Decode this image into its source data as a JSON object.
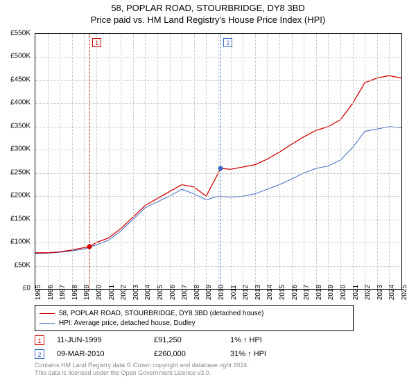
{
  "title": {
    "line1": "58, POPLAR ROAD, STOURBRIDGE, DY8 3BD",
    "line2": "Price paid vs. HM Land Registry's House Price Index (HPI)"
  },
  "chart": {
    "type": "line",
    "plot_background": "#ffffff",
    "grid_color": "#bfbfbf",
    "border_color": "#000000",
    "y_axis": {
      "min": 0,
      "max": 550000,
      "step": 50000,
      "ticks": [
        0,
        50000,
        100000,
        150000,
        200000,
        250000,
        300000,
        350000,
        400000,
        450000,
        500000,
        550000
      ],
      "tick_labels": [
        "£0",
        "£50K",
        "£100K",
        "£150K",
        "£200K",
        "£250K",
        "£300K",
        "£350K",
        "£400K",
        "£450K",
        "£500K",
        "£550K"
      ],
      "label_fontsize": 10,
      "label_color": "#000000"
    },
    "x_axis": {
      "min": 1995,
      "max": 2025,
      "ticks": [
        1995,
        1996,
        1997,
        1998,
        1999,
        2000,
        2001,
        2002,
        2003,
        2004,
        2005,
        2006,
        2007,
        2008,
        2009,
        2010,
        2011,
        2012,
        2013,
        2014,
        2015,
        2016,
        2017,
        2018,
        2019,
        2020,
        2021,
        2022,
        2023,
        2024,
        2025
      ],
      "label_fontsize": 10,
      "label_color": "#000000",
      "label_rotation": -90
    },
    "series": [
      {
        "name": "58, POPLAR ROAD, STOURBRIDGE, DY8 3BD (detached house)",
        "color": "#d40000",
        "line_width": 1.3,
        "data": [
          [
            1995,
            78000
          ],
          [
            1996,
            78000
          ],
          [
            1997,
            80000
          ],
          [
            1998,
            84000
          ],
          [
            1999.44,
            91250
          ],
          [
            2000,
            100000
          ],
          [
            2001,
            110000
          ],
          [
            2002,
            130000
          ],
          [
            2003,
            155000
          ],
          [
            2004,
            180000
          ],
          [
            2005,
            195000
          ],
          [
            2006,
            210000
          ],
          [
            2007,
            225000
          ],
          [
            2008,
            220000
          ],
          [
            2009,
            200000
          ],
          [
            2010.19,
            260000
          ],
          [
            2011,
            258000
          ],
          [
            2012,
            263000
          ],
          [
            2013,
            268000
          ],
          [
            2014,
            280000
          ],
          [
            2015,
            295000
          ],
          [
            2016,
            312000
          ],
          [
            2017,
            328000
          ],
          [
            2018,
            342000
          ],
          [
            2019,
            350000
          ],
          [
            2020,
            365000
          ],
          [
            2021,
            400000
          ],
          [
            2022,
            445000
          ],
          [
            2023,
            455000
          ],
          [
            2024,
            460000
          ],
          [
            2025,
            455000
          ]
        ]
      },
      {
        "name": "HPI: Average price, detached house, Dudley",
        "color": "#3a66c4",
        "line_width": 1.0,
        "data": [
          [
            1995,
            76000
          ],
          [
            1996,
            77000
          ],
          [
            1997,
            79000
          ],
          [
            1998,
            82000
          ],
          [
            1999,
            86000
          ],
          [
            2000,
            95000
          ],
          [
            2001,
            105000
          ],
          [
            2002,
            125000
          ],
          [
            2003,
            150000
          ],
          [
            2004,
            175000
          ],
          [
            2005,
            188000
          ],
          [
            2006,
            200000
          ],
          [
            2007,
            215000
          ],
          [
            2008,
            205000
          ],
          [
            2009,
            192000
          ],
          [
            2010,
            200000
          ],
          [
            2011,
            198000
          ],
          [
            2012,
            200000
          ],
          [
            2013,
            205000
          ],
          [
            2014,
            215000
          ],
          [
            2015,
            225000
          ],
          [
            2016,
            237000
          ],
          [
            2017,
            250000
          ],
          [
            2018,
            260000
          ],
          [
            2019,
            265000
          ],
          [
            2020,
            278000
          ],
          [
            2021,
            305000
          ],
          [
            2022,
            340000
          ],
          [
            2023,
            345000
          ],
          [
            2024,
            350000
          ],
          [
            2025,
            348000
          ]
        ]
      }
    ],
    "markers": [
      {
        "id": "1",
        "x": 1999.44,
        "y": 91250,
        "color": "#d40000"
      },
      {
        "id": "2",
        "x": 2010.19,
        "y": 260000,
        "color": "#3a66c4"
      }
    ]
  },
  "legend": {
    "items": [
      {
        "color": "#d40000",
        "label": "58, POPLAR ROAD, STOURBRIDGE, DY8 3BD (detached house)"
      },
      {
        "color": "#3a66c4",
        "label": "HPI: Average price, detached house, Dudley"
      }
    ]
  },
  "transactions": [
    {
      "badge": "1",
      "badge_color": "#d40000",
      "date": "11-JUN-1999",
      "price": "£91,250",
      "pct": "1% ↑ HPI"
    },
    {
      "badge": "2",
      "badge_color": "#3a66c4",
      "date": "09-MAR-2010",
      "price": "£260,000",
      "pct": "31% ↑ HPI"
    }
  ],
  "footer": {
    "line1": "Contains HM Land Registry data © Crown copyright and database right 2024.",
    "line2": "This data is licensed under the Open Government Licence v3.0."
  }
}
